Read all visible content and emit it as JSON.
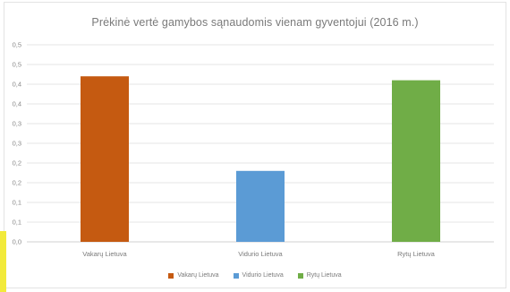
{
  "chart_data": {
    "type": "bar",
    "title": "Prėkinė vertė gamybos sąnaudomis vienam gyventojui (2016 m.)",
    "categories": [
      "Vakarų Lietuva",
      "Vidurio Lietuva",
      "Rytų Lietuva"
    ],
    "series": [
      {
        "name": "Vakarų Lietuva",
        "color": "#c55a11",
        "values": [
          0.42,
          null,
          null
        ]
      },
      {
        "name": "Vidurio Lietuva",
        "color": "#5b9bd5",
        "values": [
          null,
          0.18,
          null
        ]
      },
      {
        "name": "Rytų Lietuva",
        "color": "#70ad47",
        "values": [
          null,
          null,
          0.41
        ]
      }
    ],
    "ylim": [
      0,
      0.5
    ],
    "yticks": [
      "0,0",
      "0,1",
      "0,1",
      "0,2",
      "0,2",
      "0,3",
      "0,3",
      "0,4",
      "0,4",
      "0,5",
      "0,5"
    ],
    "grid": true,
    "legend_position": "bottom"
  }
}
